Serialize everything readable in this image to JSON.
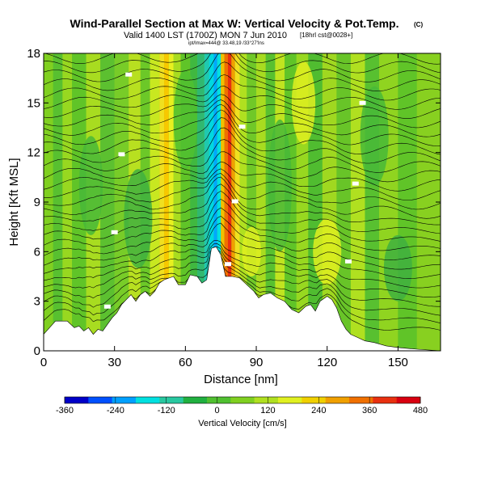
{
  "header": {
    "title": "Wind-Parallel Section at Max W: Vertical Velocity & Pot.Temp.",
    "title_mark": "(C)",
    "subtitle": "Valid 1400 LST (1700Z) MON 7 Jun 2010",
    "subtitle_small": "[18hrl cst@0028+]",
    "subtitle_tiny": "ipt/Imax=444@ 33.48,19 /33°27'Ins"
  },
  "chart_data": {
    "type": "heatmap",
    "title": "Wind-Parallel Section at Max W: Vertical Velocity & Pot.Temp.",
    "xlabel": "Distance [nm]",
    "ylabel": "Height [Kft MSL]",
    "xlim": [
      0,
      168
    ],
    "ylim": [
      0,
      18
    ],
    "x_ticks": [
      0,
      30,
      60,
      90,
      120,
      150
    ],
    "y_ticks": [
      0,
      3,
      6,
      9,
      12,
      15,
      18
    ],
    "x_tick_labels": [
      "0",
      "30",
      "60",
      "90",
      "120",
      "150"
    ],
    "y_tick_labels": [
      "0",
      "3",
      "6",
      "9",
      "12",
      "15",
      "18"
    ],
    "colorbar": {
      "label": "Vertical Velocity [cm/s]",
      "min": -360,
      "max": 480,
      "ticks": [
        -360,
        -240,
        -120,
        0,
        120,
        240,
        360,
        480
      ],
      "tick_labels": [
        "-360",
        "-240",
        "-120",
        "0",
        "120",
        "240",
        "360",
        "480"
      ],
      "colors": [
        "#0000c8",
        "#0050ff",
        "#00a0ff",
        "#00e0e0",
        "#28c8a0",
        "#20b040",
        "#50c030",
        "#80d020",
        "#b0e020",
        "#e0f020",
        "#f0d000",
        "#f0a000",
        "#f07000",
        "#e83010",
        "#d80010"
      ]
    },
    "terrain_kft": [
      [
        0,
        1.0
      ],
      [
        5,
        1.8
      ],
      [
        10,
        1.8
      ],
      [
        13,
        1.4
      ],
      [
        15,
        1.5
      ],
      [
        17,
        1.2
      ],
      [
        19,
        1.4
      ],
      [
        21,
        1.0
      ],
      [
        23,
        1.3
      ],
      [
        25,
        1.2
      ],
      [
        27,
        1.6
      ],
      [
        29,
        2.0
      ],
      [
        31,
        2.3
      ],
      [
        33,
        2.8
      ],
      [
        35,
        3.1
      ],
      [
        37,
        3.4
      ],
      [
        39,
        3.0
      ],
      [
        41,
        3.4
      ],
      [
        43,
        3.6
      ],
      [
        45,
        3.3
      ],
      [
        47,
        3.6
      ],
      [
        49,
        4.1
      ],
      [
        51,
        4.3
      ],
      [
        53,
        4.4
      ],
      [
        55,
        4.5
      ],
      [
        57,
        4.0
      ],
      [
        60,
        4.0
      ],
      [
        62,
        4.6
      ],
      [
        65,
        4.5
      ],
      [
        67,
        4.1
      ],
      [
        69,
        4.3
      ],
      [
        71,
        6.2
      ],
      [
        73,
        6.3
      ],
      [
        75,
        5.8
      ],
      [
        77,
        4.5
      ],
      [
        80,
        4.5
      ],
      [
        83,
        4.4
      ],
      [
        86,
        4.0
      ],
      [
        89,
        3.6
      ],
      [
        91,
        3.2
      ],
      [
        93,
        3.4
      ],
      [
        96,
        3.5
      ],
      [
        99,
        3.2
      ],
      [
        102,
        3.0
      ],
      [
        105,
        2.5
      ],
      [
        108,
        2.3
      ],
      [
        111,
        2.7
      ],
      [
        113,
        2.8
      ],
      [
        115,
        2.4
      ],
      [
        117,
        3.0
      ],
      [
        120,
        3.3
      ],
      [
        122,
        3.1
      ],
      [
        124,
        2.6
      ],
      [
        126,
        1.8
      ],
      [
        128,
        1.3
      ],
      [
        130,
        1.0
      ],
      [
        133,
        0.8
      ],
      [
        136,
        0.6
      ],
      [
        140,
        0.5
      ],
      [
        145,
        0.3
      ],
      [
        150,
        0.2
      ],
      [
        158,
        0.1
      ],
      [
        168,
        0.0
      ]
    ]
  }
}
